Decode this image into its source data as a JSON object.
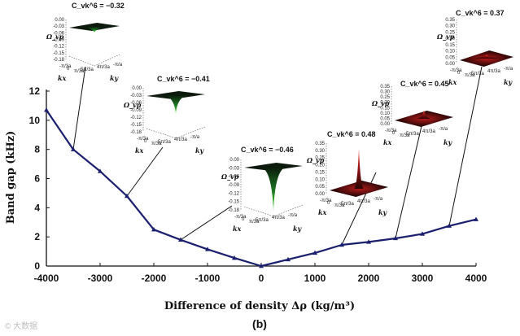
{
  "chart_data": {
    "type": "line",
    "title": "",
    "xlabel": "Difference of density Δρ (kg/m³)",
    "ylabel": "Band gap (kHz)",
    "xlim": [
      -4000,
      4000
    ],
    "ylim": [
      0,
      12
    ],
    "xticks": [
      -4000,
      -3000,
      -2000,
      -1000,
      0,
      1000,
      2000,
      3000,
      4000
    ],
    "yticks": [
      0,
      2,
      4,
      6,
      8,
      10,
      12
    ],
    "series": [
      {
        "name": "Band gap",
        "color": "#1a1f6e",
        "x": [
          -4000,
          -3500,
          -3000,
          -2500,
          -2000,
          -1500,
          -1000,
          -500,
          0,
          500,
          1000,
          1500,
          2000,
          2500,
          3000,
          3500,
          4000
        ],
        "y": [
          10.7,
          8.0,
          6.5,
          4.8,
          2.5,
          1.8,
          1.15,
          0.55,
          0.0,
          0.45,
          0.9,
          1.45,
          1.65,
          1.9,
          2.2,
          2.75,
          3.2
        ]
      }
    ],
    "insets": [
      {
        "label": "C_vk^6 = −0.32",
        "points_to_x": -3500,
        "y_axis_label": "Ω_vp",
        "y_ticks": [
          "0.00",
          "-0.03",
          "-0.06",
          "-0.09",
          "-0.12",
          "-0.15",
          "-0.18"
        ],
        "peak_color": "#2aa832",
        "sign": "negative"
      },
      {
        "label": "C_vk^6 = −0.41",
        "points_to_x": -2500,
        "y_axis_label": "Ω_vp",
        "y_ticks": [
          "0.00",
          "-0.03",
          "-0.06",
          "-0.09",
          "-0.12",
          "-0.15",
          "-0.18"
        ],
        "peak_color": "#2aa832",
        "sign": "negative"
      },
      {
        "label": "C_vk^6 = −0.46",
        "points_to_x": -1500,
        "y_axis_label": "Ω_vp",
        "y_ticks": [
          "0.00",
          "-0.03",
          "-0.06",
          "-0.09",
          "-0.12",
          "-0.15",
          "-0.18"
        ],
        "peak_color": "#2aa832",
        "sign": "negative"
      },
      {
        "label": "C_vk^6 = 0.48",
        "points_to_x": 1500,
        "y_axis_label": "Ω_vp",
        "y_ticks": [
          "0.35",
          "0.30",
          "0.25",
          "0.20",
          "0.15",
          "0.10",
          "0.05",
          "0.00"
        ],
        "peak_color": "#c62020",
        "sign": "positive"
      },
      {
        "label": "C_vk^6 = 0.45",
        "points_to_x": 2500,
        "y_axis_label": "Ω_vp",
        "y_ticks": [
          "0.35",
          "0.30",
          "0.25",
          "0.20",
          "0.15",
          "0.10",
          "0.05",
          "0.00"
        ],
        "peak_color": "#c62020",
        "sign": "positive"
      },
      {
        "label": "C_vk^6 = 0.37",
        "points_to_x": 3500,
        "y_axis_label": "Ω_vp",
        "y_ticks": [
          "0.35",
          "0.30",
          "0.25",
          "0.20",
          "0.15",
          "0.10",
          "0.05",
          "0.00"
        ],
        "peak_color": "#c62020",
        "sign": "positive"
      }
    ],
    "inset_axis_labels": {
      "kx": "kx",
      "ky": "ky",
      "kx_ticks": [
        "-π/3a",
        "0",
        "π/3a"
      ],
      "ky_ticks": [
        "5π/3a",
        "4π/3a",
        "-π/a"
      ]
    },
    "caption": "(b)",
    "watermark": "© 大数据"
  }
}
